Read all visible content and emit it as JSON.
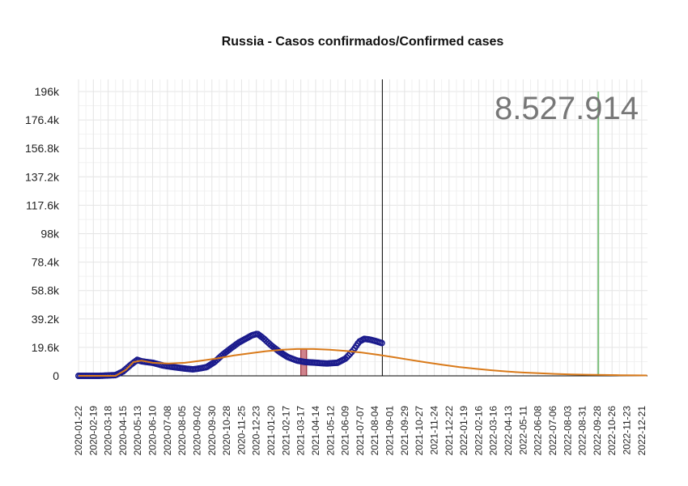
{
  "chart_data": {
    "type": "line",
    "title": "Russia - Casos confirmados/Confirmed cases",
    "total_label": "8.527.914",
    "xlabel": "",
    "ylabel": "",
    "x_range": [
      "2020-01-22",
      "2023-01-01"
    ],
    "ylim": [
      0,
      196000
    ],
    "y_ticks": [
      0,
      19600,
      39200,
      58800,
      78400,
      98000,
      117600,
      137200,
      156800,
      176400,
      196000
    ],
    "y_tick_labels": [
      "0",
      "19.6k",
      "39.2k",
      "58.8k",
      "78.4k",
      "98k",
      "117.6k",
      "137.2k",
      "156.8k",
      "176.4k",
      "196k"
    ],
    "x_tick_labels": [
      "2020-01-22",
      "2020-02-19",
      "2020-03-18",
      "2020-04-15",
      "2020-05-13",
      "2020-06-10",
      "2020-07-08",
      "2020-08-05",
      "2020-09-02",
      "2020-09-30",
      "2020-10-28",
      "2020-11-25",
      "2020-12-23",
      "2021-01-20",
      "2021-02-17",
      "2021-03-17",
      "2021-04-14",
      "2021-05-12",
      "2021-06-09",
      "2021-07-07",
      "2021-08-04",
      "2021-09-01",
      "2021-09-29",
      "2021-10-27",
      "2021-11-24",
      "2021-12-22",
      "2022-01-19",
      "2022-02-16",
      "2022-03-16",
      "2022-04-13",
      "2022-05-11",
      "2022-06-08",
      "2022-07-06",
      "2022-08-03",
      "2022-08-31",
      "2022-09-28",
      "2022-10-26",
      "2022-11-23",
      "2022-12-21"
    ],
    "grid": true,
    "legend": "none",
    "markers": {
      "current_date_line": "2021-08-18",
      "green_line": "2022-09-30",
      "highlight_band": [
        "2021-03-17",
        "2021-03-28"
      ]
    },
    "series": [
      {
        "role": "observed",
        "color": "#1a1a8c",
        "x": [
          "2020-01-22",
          "2020-03-01",
          "2020-04-01",
          "2020-04-15",
          "2020-05-01",
          "2020-05-12",
          "2020-05-20",
          "2020-06-10",
          "2020-07-01",
          "2020-07-20",
          "2020-08-10",
          "2020-08-25",
          "2020-09-05",
          "2020-09-20",
          "2020-10-05",
          "2020-10-20",
          "2020-11-05",
          "2020-11-20",
          "2020-12-05",
          "2020-12-15",
          "2020-12-25",
          "2021-01-05",
          "2021-01-20",
          "2021-02-05",
          "2021-02-20",
          "2021-03-10",
          "2021-03-25",
          "2021-04-15",
          "2021-05-05",
          "2021-05-25",
          "2021-06-10",
          "2021-06-25",
          "2021-07-05",
          "2021-07-15",
          "2021-07-25",
          "2021-08-05",
          "2021-08-18"
        ],
        "values": [
          0,
          0,
          500,
          3000,
          8000,
          11000,
          10000,
          9000,
          7000,
          6000,
          5000,
          4500,
          5000,
          6000,
          9500,
          14500,
          19000,
          23000,
          26000,
          28000,
          29000,
          26000,
          21000,
          16500,
          13000,
          10500,
          9500,
          9000,
          8500,
          9000,
          12000,
          18000,
          23500,
          25500,
          25000,
          24000,
          22500
        ]
      },
      {
        "role": "fitted-curve",
        "color": "#d97a1a",
        "x": [
          "2020-01-22",
          "2020-04-01",
          "2020-04-20",
          "2020-05-05",
          "2020-05-20",
          "2020-06-10",
          "2020-07-10",
          "2020-08-10",
          "2020-09-10",
          "2020-10-10",
          "2020-11-10",
          "2020-12-10",
          "2021-01-10",
          "2021-02-10",
          "2021-03-10",
          "2021-04-10",
          "2021-05-10",
          "2021-06-10",
          "2021-07-10",
          "2021-08-10",
          "2021-09-10",
          "2021-10-10",
          "2021-11-10",
          "2021-12-10",
          "2022-01-10",
          "2022-02-10",
          "2022-03-10",
          "2022-04-10",
          "2022-05-10",
          "2022-06-10",
          "2022-07-10",
          "2022-08-10",
          "2022-09-10",
          "2022-10-10",
          "2022-11-10",
          "2022-12-10",
          "2022-12-31"
        ],
        "values": [
          0,
          0,
          4000,
          9500,
          10500,
          9000,
          8500,
          9000,
          10500,
          12000,
          14000,
          15500,
          17000,
          18000,
          18500,
          18500,
          18000,
          17200,
          16000,
          14500,
          12800,
          11000,
          9200,
          7600,
          6100,
          4900,
          3900,
          3000,
          2300,
          1800,
          1350,
          1000,
          800,
          600,
          450,
          330,
          260
        ]
      }
    ]
  }
}
